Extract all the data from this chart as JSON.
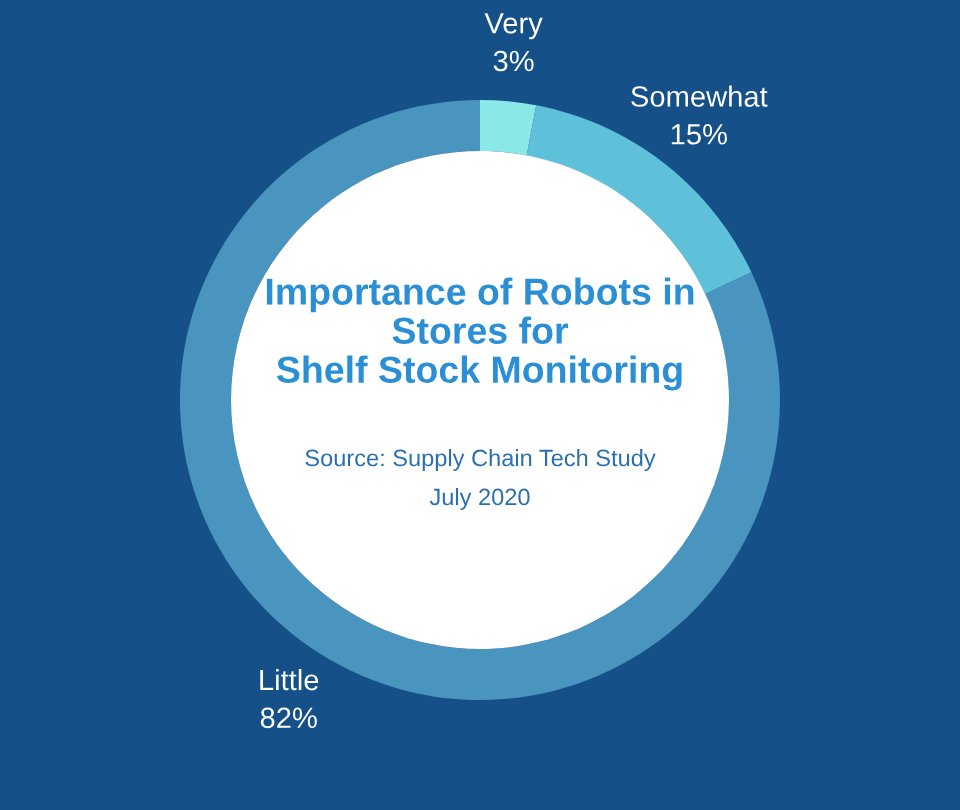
{
  "chart_data": {
    "type": "donut",
    "title": "Importance of Robots in\nStores for\nShelf Stock Monitoring",
    "annotations": [
      "Source: Supply Chain Tech Study",
      "July 2020"
    ],
    "categories": [
      "Very",
      "Somewhat",
      "Little"
    ],
    "values": [
      3,
      15,
      82
    ],
    "value_labels": [
      "3%",
      "15%",
      "82%"
    ],
    "colors": [
      "#8ae8e6",
      "#5ec1d9",
      "#4a95bf"
    ]
  }
}
